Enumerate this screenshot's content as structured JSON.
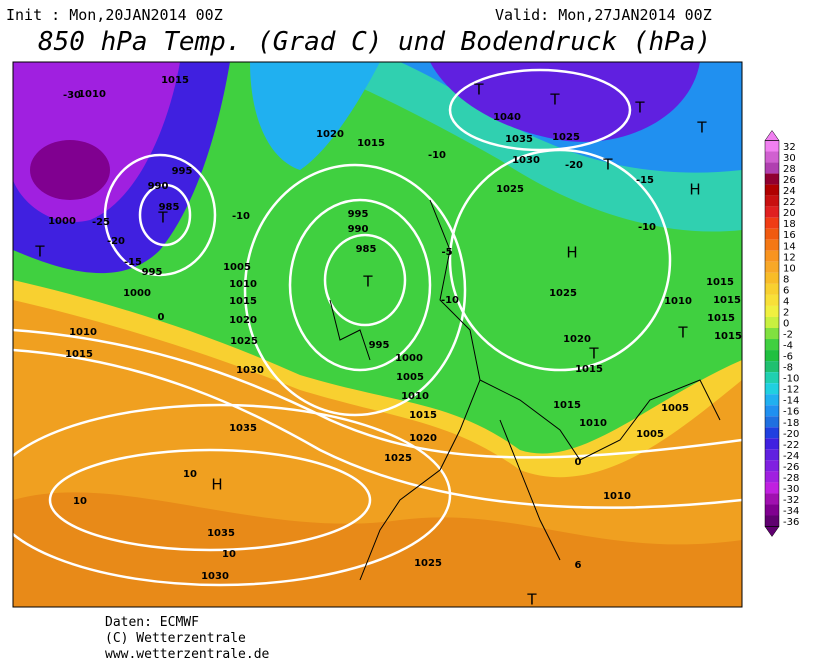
{
  "header": {
    "init": "Init : Mon,20JAN2014 00Z",
    "valid": "Valid: Mon,27JAN2014 00Z",
    "title": "850 hPa Temp. (Grad C) und Bodendruck (hPa)"
  },
  "colorbar": {
    "ticks": [
      32,
      30,
      28,
      26,
      24,
      22,
      20,
      18,
      16,
      14,
      12,
      10,
      8,
      6,
      4,
      2,
      0,
      -2,
      -4,
      -6,
      -8,
      -10,
      -12,
      -14,
      -16,
      -18,
      -20,
      -22,
      -24,
      -26,
      -28,
      -30,
      -32,
      -34,
      -36
    ],
    "colors": [
      "#f080f0",
      "#d060d0",
      "#b040b0",
      "#900030",
      "#b00000",
      "#c81010",
      "#e02020",
      "#f03c14",
      "#f05a10",
      "#f47814",
      "#f89420",
      "#f8a828",
      "#f8bc28",
      "#f8d030",
      "#f8e038",
      "#f0f040",
      "#c8f040",
      "#80e040",
      "#40d040",
      "#20c040",
      "#20c070",
      "#20d0b0",
      "#20d0e0",
      "#20b0f0",
      "#2090f0",
      "#2070e0",
      "#2040e0",
      "#4020e0",
      "#6020e0",
      "#8020e0",
      "#a020e0",
      "#c020e0",
      "#a010b0",
      "#800090",
      "#600070"
    ]
  },
  "map_labels": [
    "1015",
    "1010",
    "-30",
    "995",
    "990",
    "985",
    "T",
    "1000",
    "-25",
    "-20",
    "-15",
    "995",
    "1000",
    "1010",
    "1015",
    "0",
    "T",
    "1005",
    "1010",
    "1015",
    "1020",
    "1025",
    "1030",
    "1035",
    "10",
    "H",
    "10",
    "1035",
    "10",
    "1030",
    "995",
    "990",
    "985",
    "T",
    "995",
    "1000",
    "1005",
    "1010",
    "1015",
    "1020",
    "1025",
    "-10",
    "1040",
    "1035",
    "1030",
    "1025",
    "T",
    "T",
    "T",
    "T",
    "1025",
    "-20",
    "T",
    "-15",
    "H",
    "-10",
    "H",
    "1025",
    "1020",
    "T",
    "1015",
    "1015",
    "1010",
    "1005",
    "1005",
    "1010",
    "0",
    "1025",
    "6",
    "T",
    "1015",
    "1010",
    "1015",
    "1015",
    "1015",
    "T",
    "1020",
    "1015",
    "-10",
    "-5",
    "-10"
  ],
  "footer": {
    "source": "Daten: ECMWF",
    "copyright": "(C) Wetterzentrale",
    "url": "www.wetterzentrale.de"
  }
}
